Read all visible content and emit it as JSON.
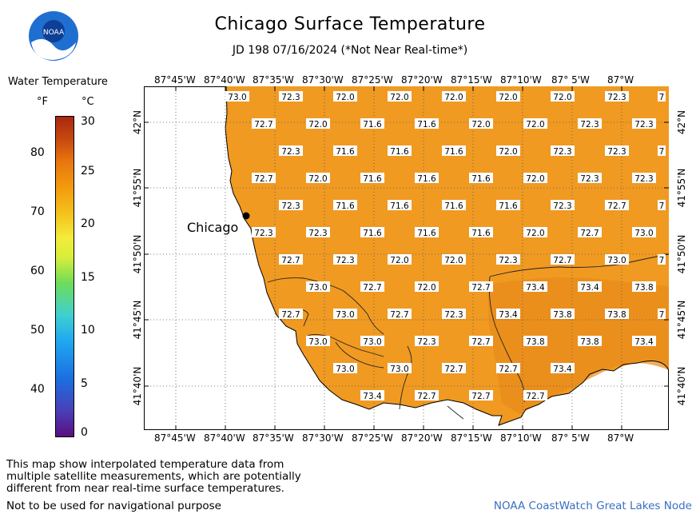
{
  "header": {
    "title": "Chicago Surface Temperature",
    "subtitle": "JD 198 07/16/2024 (*Not Near Real-time*)"
  },
  "legend": {
    "title": "Water Temperature",
    "unit_f": "°F",
    "unit_c": "°C",
    "fahrenheit_ticks": [
      "80",
      "70",
      "60",
      "50",
      "40"
    ],
    "celsius_ticks": [
      "30",
      "25",
      "20",
      "15",
      "10",
      "5",
      "0"
    ]
  },
  "map": {
    "city_label": "Chicago",
    "lon_labels": [
      "87°45'W",
      "87°40'W",
      "87°35'W",
      "87°30'W",
      "87°25'W",
      "87°20'W",
      "87°15'W",
      "87°10'W",
      "87° 5'W",
      "87°W"
    ],
    "lat_labels": [
      "42°N",
      "41°55'N",
      "41°50'N",
      "41°45'N",
      "41°40'N"
    ],
    "water_color": "#f09a22",
    "temperature_rows": [
      [
        "73.0",
        "72.3",
        "72.0",
        "72.0",
        "72.0",
        "72.0",
        "72.0",
        "72.3",
        "7"
      ],
      [
        "72.7",
        "72.0",
        "71.6",
        "71.6",
        "72.0",
        "72.0",
        "72.3",
        "72.3"
      ],
      [
        "72.3",
        "71.6",
        "71.6",
        "71.6",
        "72.0",
        "72.3",
        "72.3",
        "7"
      ],
      [
        "72.7",
        "72.0",
        "71.6",
        "71.6",
        "71.6",
        "72.0",
        "72.3",
        "72.3"
      ],
      [
        "72.3",
        "71.6",
        "71.6",
        "71.6",
        "71.6",
        "72.3",
        "72.7",
        "7"
      ],
      [
        "72.3",
        "72.3",
        "71.6",
        "71.6",
        "71.6",
        "72.0",
        "72.7",
        "73.0"
      ],
      [
        "72.7",
        "72.3",
        "72.0",
        "72.0",
        "72.3",
        "72.7",
        "73.0",
        "7"
      ],
      [
        "73.0",
        "72.7",
        "72.0",
        "72.7",
        "73.4",
        "73.4",
        "73.8"
      ],
      [
        "72.7",
        "73.0",
        "72.7",
        "72.3",
        "73.4",
        "73.8",
        "73.8",
        "7"
      ],
      [
        "73.0",
        "73.0",
        "72.3",
        "72.7",
        "73.8",
        "73.8",
        "73.4"
      ],
      [
        "73.0",
        "73.0",
        "72.7",
        "72.7",
        "73.4"
      ],
      [
        "73.4",
        "72.7",
        "72.7",
        "72.7"
      ]
    ]
  },
  "footer": {
    "disclaimer_lines": [
      "This map show interpolated temperature data from",
      "multiple satellite measurements, which are potentially",
      "different from near real-time surface temperatures."
    ],
    "nav_note": "Not to be used for navigational purpose",
    "credit": "NOAA CoastWatch Great Lakes Node"
  }
}
